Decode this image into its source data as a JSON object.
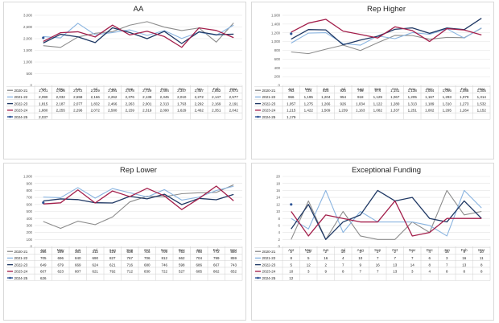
{
  "months": [
    "Apr",
    "May",
    "Jun",
    "Jul",
    "Aug",
    "Sep",
    "Oct",
    "Nov",
    "Dec",
    "Jan",
    "Feb",
    "Mar"
  ],
  "series_names": [
    "2020-21",
    "2021-22",
    "2022-23",
    "2023-24",
    "2024-25"
  ],
  "series_colors": [
    "#8c8c8c",
    "#8ab4e0",
    "#1f3864",
    "#a31f4b",
    "#2f5597"
  ],
  "chart_data": [
    {
      "type": "line",
      "title": "AA",
      "categories": [
        "Apr",
        "May",
        "Jun",
        "Jul",
        "Aug",
        "Sep",
        "Oct",
        "Nov",
        "Dec",
        "Jan",
        "Feb",
        "Mar"
      ],
      "ylim": [
        0,
        3000
      ],
      "yticks": [
        0,
        500,
        1000,
        1500,
        2000,
        2500,
        3000
      ],
      "ytick_labels": [
        "0",
        "500",
        "1,000",
        "1,500",
        "2,000",
        "2,500",
        "3,000"
      ],
      "legend": "bottom-table",
      "series": [
        {
          "name": "2020-21",
          "values": [
            1701,
            1628,
            2072,
            2229,
            2301,
            2578,
            2729,
            2494,
            2347,
            2457,
            1852,
            2673
          ],
          "labels": [
            "1,701",
            "1,628",
            "2,072",
            "2,229",
            "2,301",
            "2,578",
            "2,729",
            "2,494",
            "2,347",
            "2,457",
            "1,852",
            "2,673"
          ]
        },
        {
          "name": "2021-22",
          "values": [
            2090,
            2032,
            2658,
            2166,
            2262,
            2376,
            2138,
            2345,
            2010,
            2272,
            2147,
            2577
          ],
          "labels": [
            "2,090",
            "2,032",
            "2,658",
            "2,166",
            "2,262",
            "2,376",
            "2,138",
            "2,345",
            "2,010",
            "2,272",
            "2,147",
            "2,577"
          ]
        },
        {
          "name": "2022-23",
          "values": [
            1815,
            2187,
            2077,
            1832,
            2466,
            2263,
            2001,
            2313,
            1793,
            2292,
            2169,
            2191
          ],
          "labels": [
            "1,815",
            "2,187",
            "2,077",
            "1,832",
            "2,466",
            "2,263",
            "2,001",
            "2,313",
            "1,793",
            "2,292",
            "2,169",
            "2,191"
          ]
        },
        {
          "name": "2023-24",
          "values": [
            1880,
            2255,
            2296,
            2072,
            2580,
            2159,
            2319,
            2090,
            1629,
            2462,
            2351,
            2042
          ],
          "labels": [
            "1,880",
            "2,255",
            "2,296",
            "2,072",
            "2,580",
            "2,159",
            "2,319",
            "2,090",
            "1,629",
            "2,462",
            "2,351",
            "2,042"
          ]
        },
        {
          "name": "2024-25",
          "values": [
            2037,
            null,
            null,
            null,
            null,
            null,
            null,
            null,
            null,
            null,
            null,
            null
          ],
          "labels": [
            "2,037",
            "",
            "",
            "",
            "",
            "",
            "",
            "",
            "",
            "",
            "",
            ""
          ]
        }
      ]
    },
    {
      "type": "line",
      "title": "Rep Higher",
      "categories": [
        "Apr",
        "May",
        "Jun",
        "Jul",
        "Aug",
        "Sep",
        "Oct",
        "Nov",
        "Dec",
        "Jan",
        "Feb",
        "Mar"
      ],
      "ylim": [
        0,
        1600
      ],
      "yticks": [
        0,
        200,
        400,
        600,
        800,
        1000,
        1200,
        1400,
        1600
      ],
      "ytick_labels": [
        "0",
        "200",
        "400",
        "600",
        "800",
        "1,000",
        "1,200",
        "1,400",
        "1,600"
      ],
      "legend": "bottom-table",
      "series": [
        {
          "name": "2020-21",
          "values": [
            763,
            724,
            825,
            920,
            796,
            974,
            1141,
            1138,
            1054,
            1096,
            1088,
            1305
          ],
          "labels": [
            "763",
            "724",
            "825",
            "920",
            "796",
            "974",
            "1,141",
            "1,138",
            "1,054",
            "1,096",
            "1,088",
            "1,305"
          ]
        },
        {
          "name": "2021-22",
          "values": [
            966,
            1195,
            1204,
            954,
            918,
            1129,
            1067,
            1205,
            1167,
            1293,
            1079,
            1314
          ],
          "labels": [
            "966",
            "1,195",
            "1,204",
            "954",
            "918",
            "1,129",
            "1,067",
            "1,205",
            "1,167",
            "1,293",
            "1,079",
            "1,314"
          ]
        },
        {
          "name": "2022-23",
          "values": [
            1057,
            1275,
            1266,
            926,
            1034,
            1122,
            1280,
            1313,
            1189,
            1310,
            1273,
            1532
          ],
          "labels": [
            "1,057",
            "1,275",
            "1,266",
            "926",
            "1,034",
            "1,122",
            "1,280",
            "1,313",
            "1,189",
            "1,310",
            "1,273",
            "1,532"
          ]
        },
        {
          "name": "2023-24",
          "values": [
            1215,
            1422,
            1509,
            1239,
            1163,
            1082,
            1337,
            1251,
            1002,
            1295,
            1264,
            1152
          ],
          "labels": [
            "1,215",
            "1,422",
            "1,509",
            "1,239",
            "1,163",
            "1,082",
            "1,337",
            "1,251",
            "1,002",
            "1,295",
            "1,264",
            "1,152"
          ]
        },
        {
          "name": "2024-25",
          "values": [
            1179,
            null,
            null,
            null,
            null,
            null,
            null,
            null,
            null,
            null,
            null,
            null
          ],
          "labels": [
            "1,179",
            "",
            "",
            "",
            "",
            "",
            "",
            "",
            "",
            "",
            "",
            ""
          ]
        }
      ]
    },
    {
      "type": "line",
      "title": "Rep Lower",
      "categories": [
        "Apr",
        "May",
        "Jun",
        "Jul",
        "Aug",
        "Sep",
        "Oct",
        "Nov",
        "Dec",
        "Jan",
        "Feb",
        "Mar"
      ],
      "ylim": [
        0,
        1000
      ],
      "yticks": [
        0,
        100,
        200,
        300,
        400,
        500,
        600,
        700,
        800,
        900,
        1000
      ],
      "ytick_labels": [
        "0",
        "100",
        "200",
        "300",
        "400",
        "500",
        "600",
        "700",
        "800",
        "900",
        "1,000"
      ],
      "legend": "bottom-table",
      "series": [
        {
          "name": "2020-21",
          "values": [
            356,
            259,
            361,
            312,
            421,
            636,
            716,
            709,
            753,
            766,
            772,
            880
          ],
          "labels": [
            "356",
            "259",
            "361",
            "312",
            "421",
            "636",
            "716",
            "709",
            "753",
            "766",
            "772",
            "880"
          ]
        },
        {
          "name": "2021-22",
          "values": [
            705,
            696,
            840,
            690,
            827,
            767,
            706,
            812,
            662,
            704,
            799,
            859
          ],
          "labels": [
            "705",
            "696",
            "840",
            "690",
            "827",
            "767",
            "706",
            "812",
            "662",
            "704",
            "799",
            "859"
          ]
        },
        {
          "name": "2022-23",
          "values": [
            649,
            679,
            669,
            624,
            621,
            716,
            680,
            746,
            598,
            686,
            667,
            743
          ],
          "labels": [
            "649",
            "679",
            "669",
            "624",
            "621",
            "716",
            "680",
            "746",
            "598",
            "686",
            "667",
            "743"
          ]
        },
        {
          "name": "2023-24",
          "values": [
            607,
            623,
            807,
            621,
            792,
            712,
            830,
            722,
            527,
            685,
            862,
            652
          ],
          "labels": [
            "607",
            "623",
            "807",
            "621",
            "792",
            "712",
            "830",
            "722",
            "527",
            "685",
            "862",
            "652"
          ]
        },
        {
          "name": "2024-25",
          "values": [
            626,
            null,
            null,
            null,
            null,
            null,
            null,
            null,
            null,
            null,
            null,
            null
          ],
          "labels": [
            "626",
            "",
            "",
            "",
            "",
            "",
            "",
            "",
            "",
            "",
            "",
            ""
          ]
        }
      ]
    },
    {
      "type": "line",
      "title": "Exceptional Funding",
      "categories": [
        "Apr",
        "May",
        "Jun",
        "Jul",
        "Aug",
        "Sep",
        "Oct",
        "Nov",
        "Dec",
        "Jan",
        "Feb",
        "Mar"
      ],
      "ylim": [
        0,
        20
      ],
      "yticks": [
        0,
        2,
        4,
        6,
        8,
        10,
        12,
        14,
        16,
        18,
        20
      ],
      "ytick_labels": [
        "0",
        "2",
        "4",
        "6",
        "8",
        "10",
        "12",
        "14",
        "16",
        "18",
        "20"
      ],
      "legend": "bottom-table",
      "series": [
        {
          "name": "2020-21",
          "values": [
            2,
            13,
            2,
            10,
            3,
            2,
            2,
            7,
            4,
            16,
            9,
            10
          ],
          "labels": [
            "2",
            "13",
            "2",
            "10",
            "3",
            "2",
            "2",
            "7",
            "4",
            "16",
            "9",
            "10"
          ]
        },
        {
          "name": "2021-22",
          "values": [
            8,
            5,
            16,
            4,
            10,
            7,
            7,
            7,
            6,
            3,
            16,
            11
          ],
          "labels": [
            "8",
            "5",
            "16",
            "4",
            "10",
            "7",
            "7",
            "7",
            "6",
            "3",
            "16",
            "11"
          ]
        },
        {
          "name": "2022-23",
          "values": [
            5,
            12,
            2,
            7,
            9,
            16,
            13,
            14,
            8,
            7,
            13,
            8
          ],
          "labels": [
            "5",
            "12",
            "2",
            "7",
            "9",
            "16",
            "13",
            "14",
            "8",
            "7",
            "13",
            "8"
          ]
        },
        {
          "name": "2023-24",
          "values": [
            10,
            3,
            9,
            8,
            7,
            7,
            13,
            3,
            4,
            8,
            8,
            8
          ],
          "labels": [
            "10",
            "3",
            "9",
            "8",
            "7",
            "7",
            "13",
            "3",
            "4",
            "8",
            "8",
            "8"
          ]
        },
        {
          "name": "2024-25",
          "values": [
            12,
            null,
            null,
            null,
            null,
            null,
            null,
            null,
            null,
            null,
            null,
            null
          ],
          "labels": [
            "12",
            "",
            "",
            "",
            "",
            "",
            "",
            "",
            "",
            "",
            "",
            ""
          ]
        }
      ]
    }
  ]
}
